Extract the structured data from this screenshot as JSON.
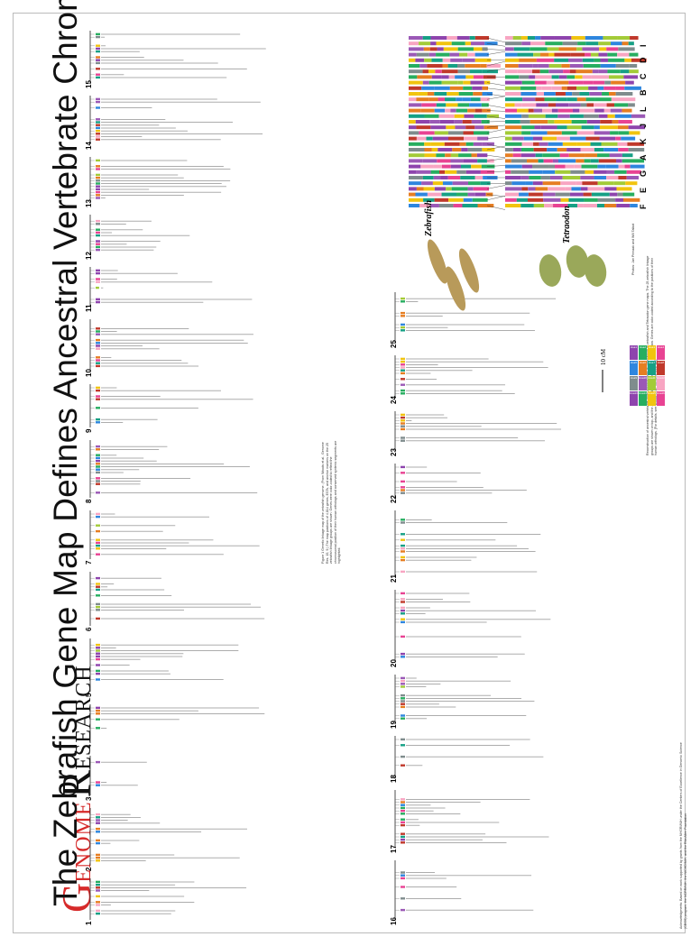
{
  "title": "The Zebrafish Gene Map Defines Ancestral Vertebrate Chromosomes",
  "logo": {
    "g": "G",
    "enome": "ENOME",
    "r": "R",
    "esearch": "ESEARCH"
  },
  "chromosomes_top": [
    "1",
    "2",
    "3",
    "4",
    "5",
    "6",
    "7",
    "8",
    "9",
    "10",
    "11",
    "12",
    "13",
    "14",
    "15"
  ],
  "chromosomes_bottom": [
    "16",
    "17",
    "18",
    "19",
    "20",
    "21",
    "22",
    "23",
    "24",
    "25"
  ],
  "figure1_caption": "Figure 1 Genetic linkage map of the zebrafish genome. (From Woods et al., Genome Res. 15, 9.) The map positions of 4,814 genes, ESTs, and anchor markers on the 25 zebrafish linkage groups are shown. Genes were color-coded to reflect the chromosomal position of their human orthologs and conserved syntenic segments are highlighted.",
  "figure2_caption": "Reconstruction of ancestral vertebrate proto-chromosomes by comparison of zebrafish and Tetraodon gene maps. The 25 zebrafish linkage groups are shown on top, and the 21 Tetraodon chromosomes are shown below. Genes are color-coded according to the positions of their human orthologs. [For details, see Woods et al., Genome Res. 15.]",
  "acknowledgments": "Acknowledgments: Based on work supported by grants from the NHGRI/NIH under the Centers of Excellence in Genomic Science (CEGS) program, the NCRR/NIH, the NICHD/NIH, and the Rita Allen Foundation.",
  "scale_bar": "10 cM",
  "fish_labels": {
    "zebrafish": "Zebrafish",
    "tetraodon": "Tetraodon"
  },
  "photo_credit": "Photos: Jan Pinnaak and Will Talbot",
  "ancestral_groups": [
    "F",
    "E",
    "G",
    "A",
    "K",
    "J",
    "L",
    "B",
    "C",
    "D",
    "I"
  ],
  "legend_labels": [
    "Hsa1",
    "Hsa2",
    "Hsa3",
    "Hsa4",
    "Hsa5",
    "Hsa6",
    "Hsa7",
    "Hsa8",
    "Hsa9",
    "Hsa10",
    "Hsa11",
    "Hsa12",
    "Hsa13",
    "Hsa14",
    "Hsa15",
    "Hsa16"
  ],
  "colors": {
    "accent": "#d62a2a",
    "palette": [
      "#8e44ad",
      "#27ae60",
      "#f1c40f",
      "#e84393",
      "#2e86de",
      "#e67e22",
      "#16a085",
      "#c0392b",
      "#7f8c8d",
      "#9b59b6",
      "#a3cb38",
      "#f8a5c2"
    ]
  }
}
